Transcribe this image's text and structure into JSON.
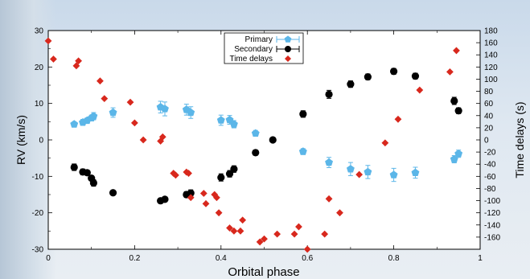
{
  "chart_data": {
    "type": "scatter",
    "xlabel": "Orbital phase",
    "ylabel": "RV (km/s)",
    "y2label": "Time delays (s)",
    "xlim": [
      0,
      1
    ],
    "ylim": [
      -30,
      30
    ],
    "y2lim": [
      -180,
      180
    ],
    "x_ticks": [
      "0",
      "0.2",
      "0.4",
      "0.6",
      "0.8",
      "1"
    ],
    "y_ticks": [
      "-30",
      "-20",
      "-10",
      "0",
      "10",
      "20",
      "30"
    ],
    "y2_ticks": [
      "-160",
      "-140",
      "-120",
      "-100",
      "-80",
      "-60",
      "-40",
      "-20",
      "0",
      "20",
      "40",
      "60",
      "80",
      "100",
      "120",
      "140",
      "160",
      "180"
    ],
    "legend_position": "top-center",
    "series": [
      {
        "name": "Primary",
        "color": "#5bb6e8",
        "marker": "pentagon",
        "axis": "left",
        "points": [
          [
            0.06,
            4.3,
            0.6
          ],
          [
            0.08,
            4.8,
            0.8
          ],
          [
            0.09,
            5.3,
            0.7
          ],
          [
            0.1,
            6.0,
            0.8
          ],
          [
            0.105,
            6.5,
            1.0
          ],
          [
            0.15,
            7.5,
            1.3
          ],
          [
            0.26,
            9.0,
            1.6
          ],
          [
            0.27,
            8.5,
            1.9
          ],
          [
            0.32,
            8.3,
            1.5
          ],
          [
            0.33,
            7.5,
            1.6
          ],
          [
            0.4,
            5.4,
            1.4
          ],
          [
            0.42,
            5.5,
            1.2
          ],
          [
            0.43,
            4.3,
            1.0
          ],
          [
            0.48,
            1.8,
            0.8
          ],
          [
            0.59,
            -3.2,
            0.8
          ],
          [
            0.65,
            -6.2,
            1.4
          ],
          [
            0.7,
            -8.0,
            1.8
          ],
          [
            0.74,
            -8.8,
            1.8
          ],
          [
            0.8,
            -9.6,
            1.8
          ],
          [
            0.85,
            -9.0,
            1.5
          ],
          [
            0.94,
            -5.3,
            1.0
          ],
          [
            0.95,
            -3.8,
            1.0
          ]
        ]
      },
      {
        "name": "Secondary",
        "color": "#000000",
        "marker": "circle",
        "axis": "left",
        "points": [
          [
            0.06,
            -7.5,
            0.9
          ],
          [
            0.08,
            -8.8,
            0.8
          ],
          [
            0.09,
            -9.0,
            0.6
          ],
          [
            0.1,
            -10.5,
            0.7
          ],
          [
            0.105,
            -11.8,
            0.9
          ],
          [
            0.15,
            -14.5,
            0.6
          ],
          [
            0.26,
            -16.7,
            0.6
          ],
          [
            0.27,
            -16.3,
            0.6
          ],
          [
            0.32,
            -15.0,
            0.8
          ],
          [
            0.33,
            -14.6,
            0.9
          ],
          [
            0.4,
            -10.3,
            1.0
          ],
          [
            0.42,
            -9.3,
            0.9
          ],
          [
            0.43,
            -8.0,
            0.9
          ],
          [
            0.48,
            -3.5,
            0.7
          ],
          [
            0.52,
            0.0,
            0.6
          ],
          [
            0.59,
            7.1,
            0.9
          ],
          [
            0.65,
            12.5,
            1.1
          ],
          [
            0.7,
            15.3,
            0.9
          ],
          [
            0.74,
            17.3,
            0.8
          ],
          [
            0.8,
            18.8,
            0.8
          ],
          [
            0.85,
            17.5,
            0.8
          ],
          [
            0.94,
            10.7,
            1.0
          ],
          [
            0.95,
            8.0,
            0.8
          ]
        ]
      },
      {
        "name": "Time delays",
        "color": "#d8281d",
        "marker": "diamond",
        "axis": "right",
        "points": [
          [
            0.0,
            163
          ],
          [
            0.012,
            133
          ],
          [
            0.065,
            122
          ],
          [
            0.07,
            130
          ],
          [
            0.12,
            97
          ],
          [
            0.13,
            68
          ],
          [
            0.19,
            62
          ],
          [
            0.2,
            28
          ],
          [
            0.22,
            0
          ],
          [
            0.26,
            -2
          ],
          [
            0.265,
            5
          ],
          [
            0.29,
            -55
          ],
          [
            0.295,
            -58
          ],
          [
            0.32,
            -53
          ],
          [
            0.325,
            -55
          ],
          [
            0.33,
            -95
          ],
          [
            0.36,
            -88
          ],
          [
            0.365,
            -105
          ],
          [
            0.385,
            -90
          ],
          [
            0.39,
            -95
          ],
          [
            0.395,
            -120
          ],
          [
            0.42,
            -145
          ],
          [
            0.43,
            -150
          ],
          [
            0.445,
            -150
          ],
          [
            0.45,
            -132
          ],
          [
            0.49,
            -168
          ],
          [
            0.5,
            -163
          ],
          [
            0.53,
            -155
          ],
          [
            0.57,
            -155
          ],
          [
            0.58,
            -143
          ],
          [
            0.6,
            -180
          ],
          [
            0.64,
            -155
          ],
          [
            0.65,
            -97
          ],
          [
            0.675,
            -120
          ],
          [
            0.72,
            -57
          ],
          [
            0.78,
            -5
          ],
          [
            0.81,
            34
          ],
          [
            0.86,
            82
          ],
          [
            0.93,
            112
          ],
          [
            0.945,
            147
          ]
        ]
      }
    ]
  }
}
